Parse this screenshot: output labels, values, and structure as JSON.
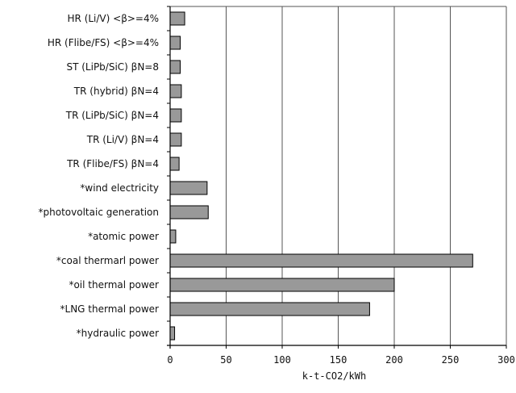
{
  "chart_data": {
    "type": "bar",
    "orientation": "horizontal",
    "categories": [
      "HR (Li/V) <β>=4%",
      "HR (Flibe/FS) <β>=4%",
      "ST (LiPb/SiC) βN=8",
      "TR (hybrid) βN=4",
      "TR (LiPb/SiC) βN=4",
      "TR (Li/V) βN=4",
      "TR (Flibe/FS) βN=4",
      "*wind electricity",
      "*photovoltaic generation",
      "*atomic power",
      "*coal thermarl power",
      "*oil thermal power",
      "*LNG thermal power",
      "*hydraulic power"
    ],
    "values": [
      13,
      9,
      9,
      10,
      10,
      10,
      8,
      33,
      34,
      5,
      270,
      200,
      178,
      4
    ],
    "xlabel": "k-t-CO2/kWh",
    "ylabel": "",
    "title": "",
    "xlim": [
      0,
      300
    ],
    "xticks": [
      0,
      50,
      100,
      150,
      200,
      250,
      300
    ],
    "xtick_labels": [
      "0",
      "50",
      "100",
      "150",
      "200",
      "250",
      "300"
    ],
    "grid": "vertical",
    "legend": "none",
    "bar_color": "#999999",
    "bar_edge_color": "#000000"
  }
}
